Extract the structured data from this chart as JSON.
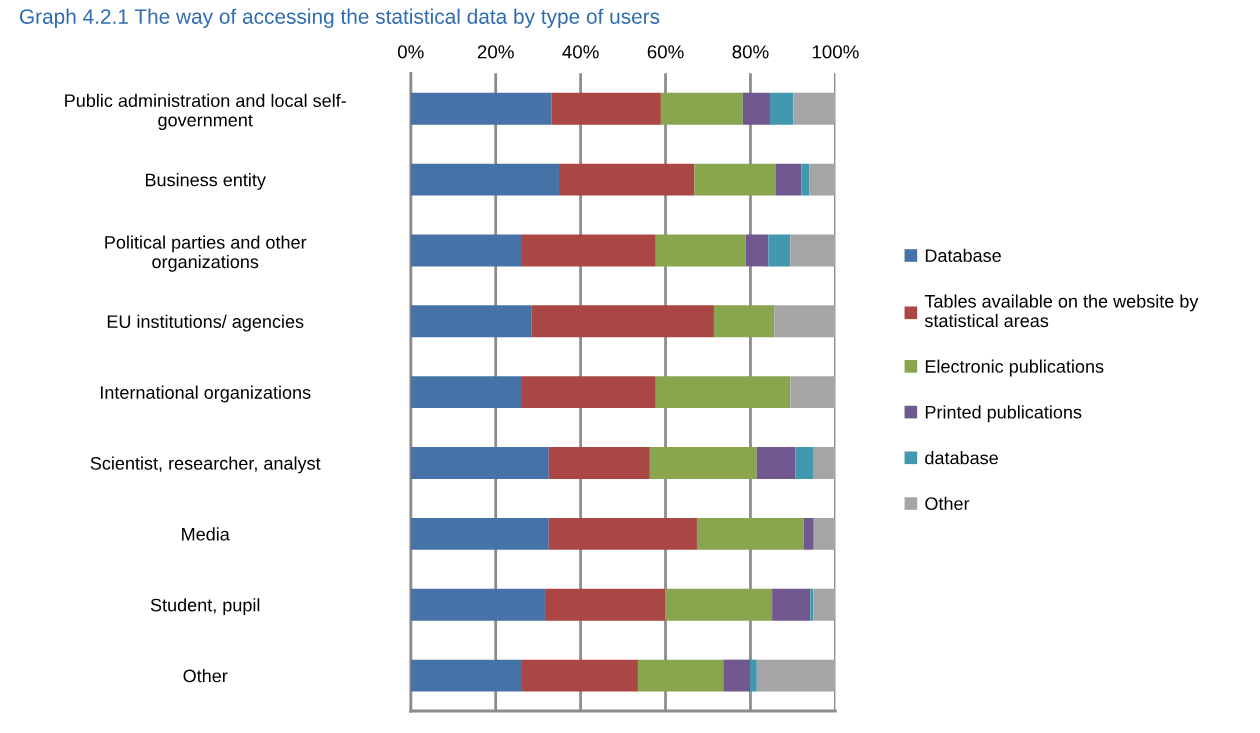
{
  "chart_data": {
    "type": "bar",
    "orientation": "horizontal",
    "stacked": true,
    "title": "Graph 4.2.1 The way of accessing the statistical data by type of users",
    "categories": [
      "Public administration and local self-\ngovernment",
      "Business entity",
      "Political parties and other\norganizations",
      "EU institutions/ agencies",
      "International organizations",
      "Scientist, researcher, analyst",
      "Media",
      "Student, pupil",
      "Other"
    ],
    "series": [
      {
        "name": "Database",
        "color": "#4573a7",
        "values": [
          33.2,
          34.9,
          26.2,
          28.5,
          26.2,
          32.5,
          32.5,
          31.6,
          26.2
        ]
      },
      {
        "name": "Tables available on the website by\nstatistical areas",
        "color": "#aa4644",
        "values": [
          25.7,
          31.9,
          31.5,
          42.9,
          31.5,
          23.8,
          34.9,
          28.3,
          27.3
        ]
      },
      {
        "name": "Electronic publications",
        "color": "#89a54e",
        "values": [
          19.3,
          19.2,
          21.2,
          14.2,
          31.7,
          25.2,
          25.1,
          25.2,
          20.1
        ]
      },
      {
        "name": "Printed publications",
        "color": "#71588f",
        "values": [
          6.4,
          6.0,
          5.3,
          0,
          0,
          9.1,
          2.4,
          9.0,
          6.3
        ]
      },
      {
        "name": "database",
        "color": "#4198af",
        "values": [
          5.5,
          1.9,
          5.2,
          0,
          0,
          4.3,
          0,
          0.7,
          1.6
        ]
      },
      {
        "name": "Other",
        "color": "#a5a5a5",
        "values": [
          9.9,
          6.1,
          10.6,
          14.4,
          10.6,
          5.1,
          5.1,
          5.2,
          18.5
        ]
      }
    ],
    "xlim": [
      0,
      100
    ],
    "xticks": [
      {
        "value": 0,
        "label": "0%"
      },
      {
        "value": 20,
        "label": "20%"
      },
      {
        "value": 40,
        "label": "40%"
      },
      {
        "value": 60,
        "label": "60%"
      },
      {
        "value": 80,
        "label": "80%"
      },
      {
        "value": 100,
        "label": "100%"
      }
    ],
    "grid": "x",
    "legend": "right"
  }
}
